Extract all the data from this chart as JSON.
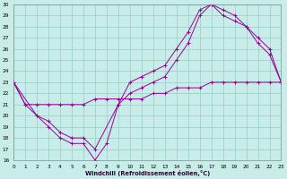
{
  "xlabel": "Windchill (Refroidissement éolien,°C)",
  "xlim": [
    0,
    23
  ],
  "ylim": [
    16,
    30
  ],
  "xticks": [
    0,
    1,
    2,
    3,
    4,
    5,
    6,
    7,
    8,
    9,
    10,
    11,
    12,
    13,
    14,
    15,
    16,
    17,
    18,
    19,
    20,
    21,
    22,
    23
  ],
  "yticks": [
    16,
    17,
    18,
    19,
    20,
    21,
    22,
    23,
    24,
    25,
    26,
    27,
    28,
    29,
    30
  ],
  "bg_color": "#c8ece8",
  "grid_color": "#a0d0cc",
  "line_color": "#990099",
  "line1_x": [
    0,
    1,
    2,
    3,
    4,
    5,
    6,
    7,
    8,
    9,
    10,
    11,
    12,
    13,
    14,
    15,
    16,
    17,
    18,
    19,
    20,
    21,
    22,
    23
  ],
  "line1_y": [
    23,
    21,
    20,
    19,
    18,
    17.5,
    17.5,
    16,
    17.5,
    21,
    23,
    23.5,
    24,
    24.5,
    26,
    27.5,
    29.5,
    30,
    29,
    28.5,
    28,
    27,
    26,
    23
  ],
  "line2_x": [
    0,
    2,
    3,
    4,
    5,
    6,
    7,
    9,
    10,
    11,
    12,
    13,
    14,
    15,
    16,
    17,
    18,
    19,
    20,
    21,
    22,
    23
  ],
  "line2_y": [
    23,
    20,
    19.5,
    18.5,
    18,
    18,
    17,
    21,
    22,
    22.5,
    23,
    23.5,
    25,
    26.5,
    29,
    30,
    29.5,
    29,
    28,
    26.5,
    25.5,
    23
  ],
  "line3_x": [
    0,
    1,
    2,
    3,
    4,
    5,
    6,
    7,
    8,
    9,
    10,
    11,
    12,
    13,
    14,
    15,
    16,
    17,
    18,
    19,
    20,
    21,
    22,
    23
  ],
  "line3_y": [
    23,
    21,
    21,
    21,
    21,
    21,
    21,
    21.5,
    21.5,
    21.5,
    21.5,
    21.5,
    22,
    22,
    22.5,
    22.5,
    22.5,
    23,
    23,
    23,
    23,
    23,
    23,
    23
  ]
}
